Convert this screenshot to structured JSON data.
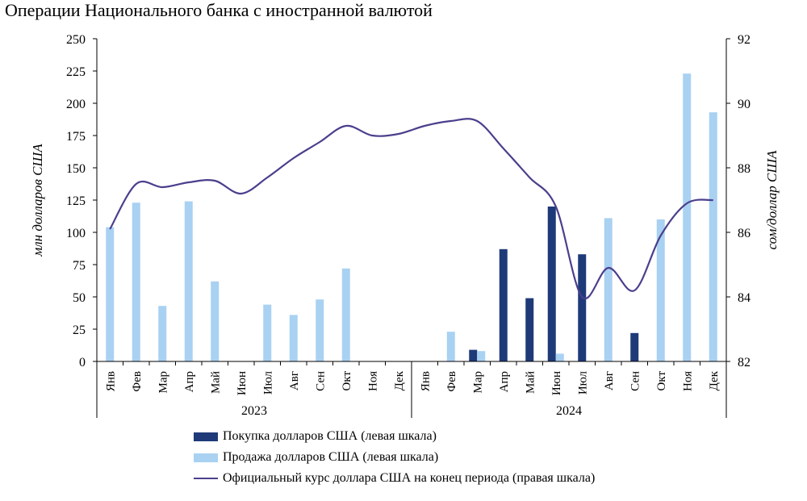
{
  "chart_data": {
    "type": "bar",
    "title": "Операции Национального банка с иностранной валютой",
    "ylabel_left": "млн долларов США",
    "ylabel_right": "сом/доллар США",
    "ylim_left": [
      0,
      250
    ],
    "ylim_right": [
      82,
      92
    ],
    "yticks_left": [
      "0",
      "25",
      "50",
      "75",
      "100",
      "125",
      "150",
      "175",
      "200",
      "225",
      "250"
    ],
    "yticks_right": [
      "82",
      "84",
      "86",
      "88",
      "90",
      "92"
    ],
    "years": [
      "2023",
      "2024"
    ],
    "categories": [
      "Янв",
      "Фев",
      "Мар",
      "Апр",
      "Май",
      "Июн",
      "Июл",
      "Авг",
      "Сен",
      "Окт",
      "Ноя",
      "Дек",
      "Янв",
      "Фев",
      "Мар",
      "Апр",
      "Май",
      "Июн",
      "Июл",
      "Авг",
      "Сен",
      "Окт",
      "Ноя",
      "Дек"
    ],
    "series": [
      {
        "name": "Покупка долларов США (левая шкала)",
        "kind": "bar",
        "axis": "left",
        "color": "#1F3A78",
        "values": [
          0,
          0,
          0,
          0,
          0,
          0,
          0,
          0,
          0,
          0,
          0,
          0,
          0,
          0,
          9,
          87,
          49,
          120,
          83,
          0,
          22,
          0,
          0,
          0
        ]
      },
      {
        "name": "Продажа долларов США (левая шкала)",
        "kind": "bar",
        "axis": "left",
        "color": "#A9D1F2",
        "values": [
          104,
          123,
          43,
          124,
          62,
          0,
          44,
          36,
          48,
          72,
          0,
          0,
          0,
          23,
          8,
          0,
          0,
          6,
          0,
          111,
          0,
          110,
          223,
          193
        ]
      },
      {
        "name": "Официальный курс доллара США на конец периода (правая шкала)",
        "kind": "line",
        "axis": "right",
        "color": "#4B3F8C",
        "values": [
          86.1,
          87.5,
          87.4,
          87.55,
          87.6,
          87.2,
          87.7,
          88.3,
          88.8,
          89.3,
          89.0,
          89.05,
          89.3,
          89.45,
          89.45,
          88.6,
          87.7,
          86.8,
          84.0,
          84.9,
          84.2,
          85.9,
          86.9,
          87.0
        ]
      }
    ]
  }
}
